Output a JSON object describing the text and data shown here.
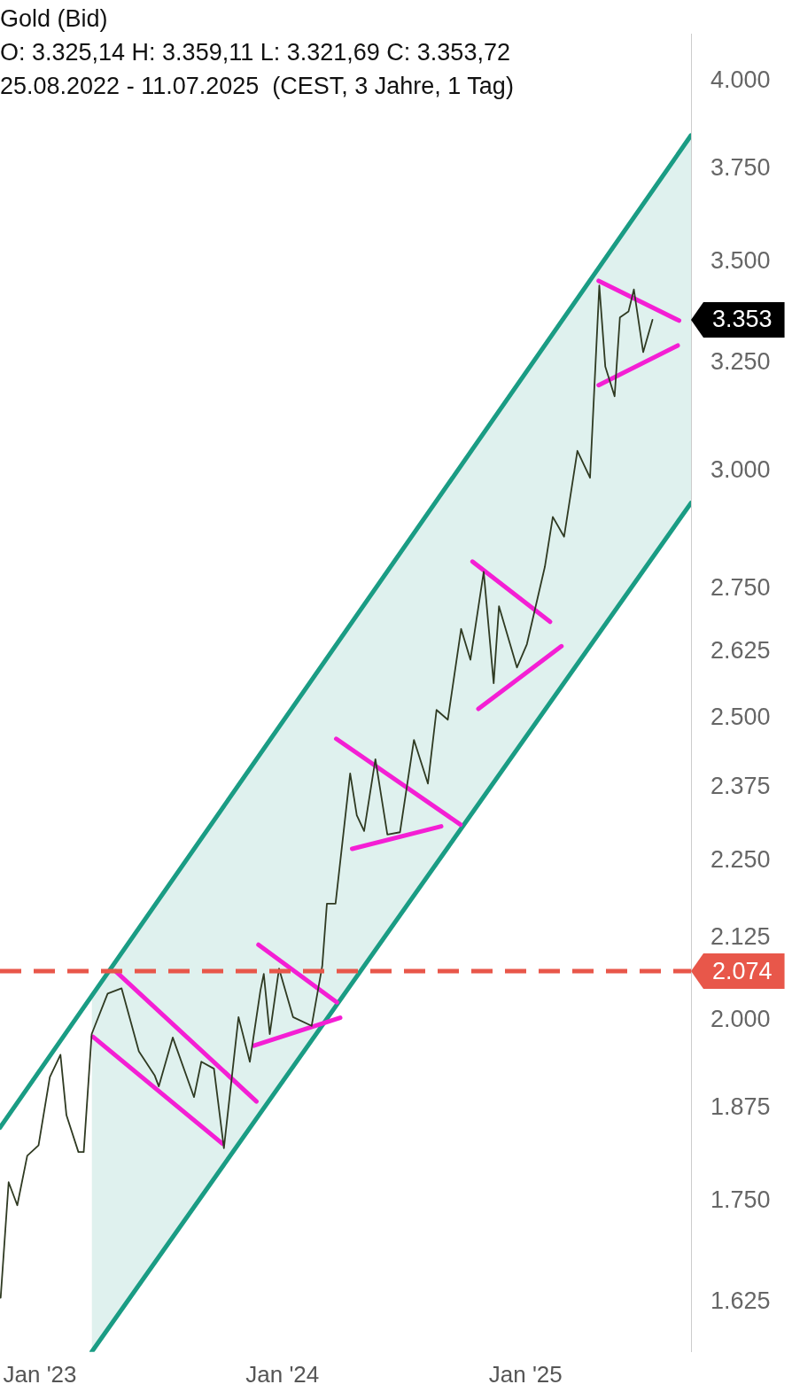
{
  "chart_data": {
    "type": "line",
    "title": "Gold (Bid)",
    "subtitle": "O: 3.325,14 H: 3.359,11 L: 3.321,69 C: 3.353,72\n25.08.2022 - 11.07.2025  (CEST, 3 Jahre, 1 Tag)",
    "log": "y",
    "grid": false,
    "legend": false,
    "marker": "none",
    "line_style": "solid",
    "xlim": [
      "2022-11-02",
      "2025-09-07"
    ],
    "xticks": [
      {
        "value": "2023-01-01",
        "label": "Jan '23"
      },
      {
        "value": "2024-01-01",
        "label": "Jan '24"
      },
      {
        "value": "2025-01-01",
        "label": "Jan '25"
      }
    ],
    "ylim": [
      1566,
      4142
    ],
    "yticks": [
      {
        "value": 1625,
        "label": "1.625"
      },
      {
        "value": 1750,
        "label": "1.750"
      },
      {
        "value": 1875,
        "label": "1.875"
      },
      {
        "value": 2000,
        "label": "2.000"
      },
      {
        "value": 2125,
        "label": "2.125"
      },
      {
        "value": 2250,
        "label": "2.250"
      },
      {
        "value": 2375,
        "label": "2.375"
      },
      {
        "value": 2500,
        "label": "2.500"
      },
      {
        "value": 2625,
        "label": "2.625"
      },
      {
        "value": 2750,
        "label": "2.750"
      },
      {
        "value": 3000,
        "label": "3.000"
      },
      {
        "value": 3250,
        "label": "3.250"
      },
      {
        "value": 3500,
        "label": "3.500"
      },
      {
        "value": 3750,
        "label": "3.750"
      },
      {
        "value": 4000,
        "label": "4.000"
      }
    ],
    "ref_lines": [
      {
        "axis": "y",
        "value": 2074,
        "label": "2.074",
        "color": "#e8574a",
        "line_style": "dashed"
      }
    ],
    "annotations": [
      "3.353"
    ],
    "series": [
      {
        "type": "line",
        "color": "#2f3a22",
        "x": [
          "2022-11-03",
          "2022-11-15",
          "2022-11-28",
          "2022-12-13",
          "2022-12-30",
          "2023-01-16",
          "2023-02-01",
          "2023-02-10",
          "2023-02-28",
          "2023-03-08",
          "2023-03-20",
          "2023-04-13",
          "2023-05-04",
          "2023-05-30",
          "2023-06-23",
          "2023-06-29",
          "2023-07-20",
          "2023-08-21",
          "2023-09-01",
          "2023-09-20",
          "2023-10-05",
          "2023-10-27",
          "2023-11-13",
          "2023-11-29",
          "2023-12-04",
          "2023-12-13",
          "2023-12-27",
          "2024-01-17",
          "2024-02-14",
          "2024-03-01",
          "2024-03-08",
          "2024-03-21",
          "2024-04-12",
          "2024-04-22",
          "2024-05-03",
          "2024-05-20",
          "2024-06-07",
          "2024-06-26",
          "2024-07-17",
          "2024-08-07",
          "2024-08-20",
          "2024-09-06",
          "2024-09-26",
          "2024-10-10",
          "2024-10-30",
          "2024-11-14",
          "2024-11-22",
          "2024-12-19",
          "2025-01-03",
          "2025-01-30",
          "2025-02-11",
          "2025-02-28",
          "2025-03-20",
          "2025-04-08",
          "2025-04-22",
          "2025-05-01",
          "2025-05-15",
          "2025-05-23",
          "2025-06-05",
          "2025-06-13",
          "2025-06-27",
          "2025-07-11"
        ],
        "values": [
          1630,
          1775,
          1745,
          1810,
          1824,
          1918,
          1950,
          1865,
          1815,
          1815,
          1980,
          2040,
          2048,
          1955,
          1920,
          1905,
          1975,
          1890,
          1940,
          1930,
          1820,
          2005,
          1940,
          2045,
          2070,
          1980,
          2078,
          2005,
          1992,
          2082,
          2180,
          2180,
          2400,
          2327,
          2300,
          2425,
          2294,
          2298,
          2460,
          2382,
          2515,
          2497,
          2670,
          2610,
          2785,
          2565,
          2715,
          2595,
          2640,
          2795,
          2900,
          2858,
          3045,
          2985,
          3440,
          3240,
          3170,
          3360,
          3375,
          3430,
          3275,
          3354
        ]
      },
      {
        "type": "line",
        "color": "#1a9c84",
        "x": [
          "2022-11-02",
          "2025-09-07"
        ],
        "values": [
          1848,
          3843
        ]
      },
      {
        "type": "line",
        "color": "#1a9c84",
        "x": [
          "2023-03-20",
          "2025-09-07"
        ],
        "values": [
          1566,
          2930
        ],
        "lower": [
          1566,
          2930
        ],
        "upper": [
          2037,
          3843
        ]
      },
      {
        "type": "line",
        "color": "#f41fd4",
        "x": [
          "2023-04-25",
          "2023-11-23"
        ],
        "values": [
          2074,
          1884
        ]
      },
      {
        "type": "line",
        "color": "#f41fd4",
        "x": [
          "2023-03-22",
          "2023-10-03"
        ],
        "values": [
          1976,
          1826
        ]
      },
      {
        "type": "line",
        "color": "#f41fd4",
        "x": [
          "2023-11-26",
          "2024-03-23"
        ],
        "values": [
          2115,
          2027
        ]
      },
      {
        "type": "line",
        "color": "#f41fd4",
        "x": [
          "2023-11-19",
          "2024-03-28"
        ],
        "values": [
          1963,
          2004
        ]
      },
      {
        "type": "line",
        "color": "#f41fd4",
        "x": [
          "2024-03-22",
          "2024-09-25"
        ],
        "values": [
          2462,
          2311
        ]
      },
      {
        "type": "line",
        "color": "#f41fd4",
        "x": [
          "2024-04-15",
          "2024-08-27"
        ],
        "values": [
          2270,
          2308
        ]
      },
      {
        "type": "line",
        "color": "#f41fd4",
        "x": [
          "2024-10-13",
          "2025-02-07"
        ],
        "values": [
          2806,
          2684
        ]
      },
      {
        "type": "line",
        "color": "#f41fd4",
        "x": [
          "2024-10-22",
          "2025-02-24"
        ],
        "values": [
          2517,
          2636
        ]
      },
      {
        "type": "line",
        "color": "#f41fd4",
        "x": [
          "2025-04-21",
          "2025-08-20"
        ],
        "values": [
          3452,
          3352
        ]
      },
      {
        "type": "line",
        "color": "#f41fd4",
        "x": [
          "2025-04-21",
          "2025-08-18"
        ],
        "values": [
          3196,
          3291
        ]
      }
    ]
  }
}
